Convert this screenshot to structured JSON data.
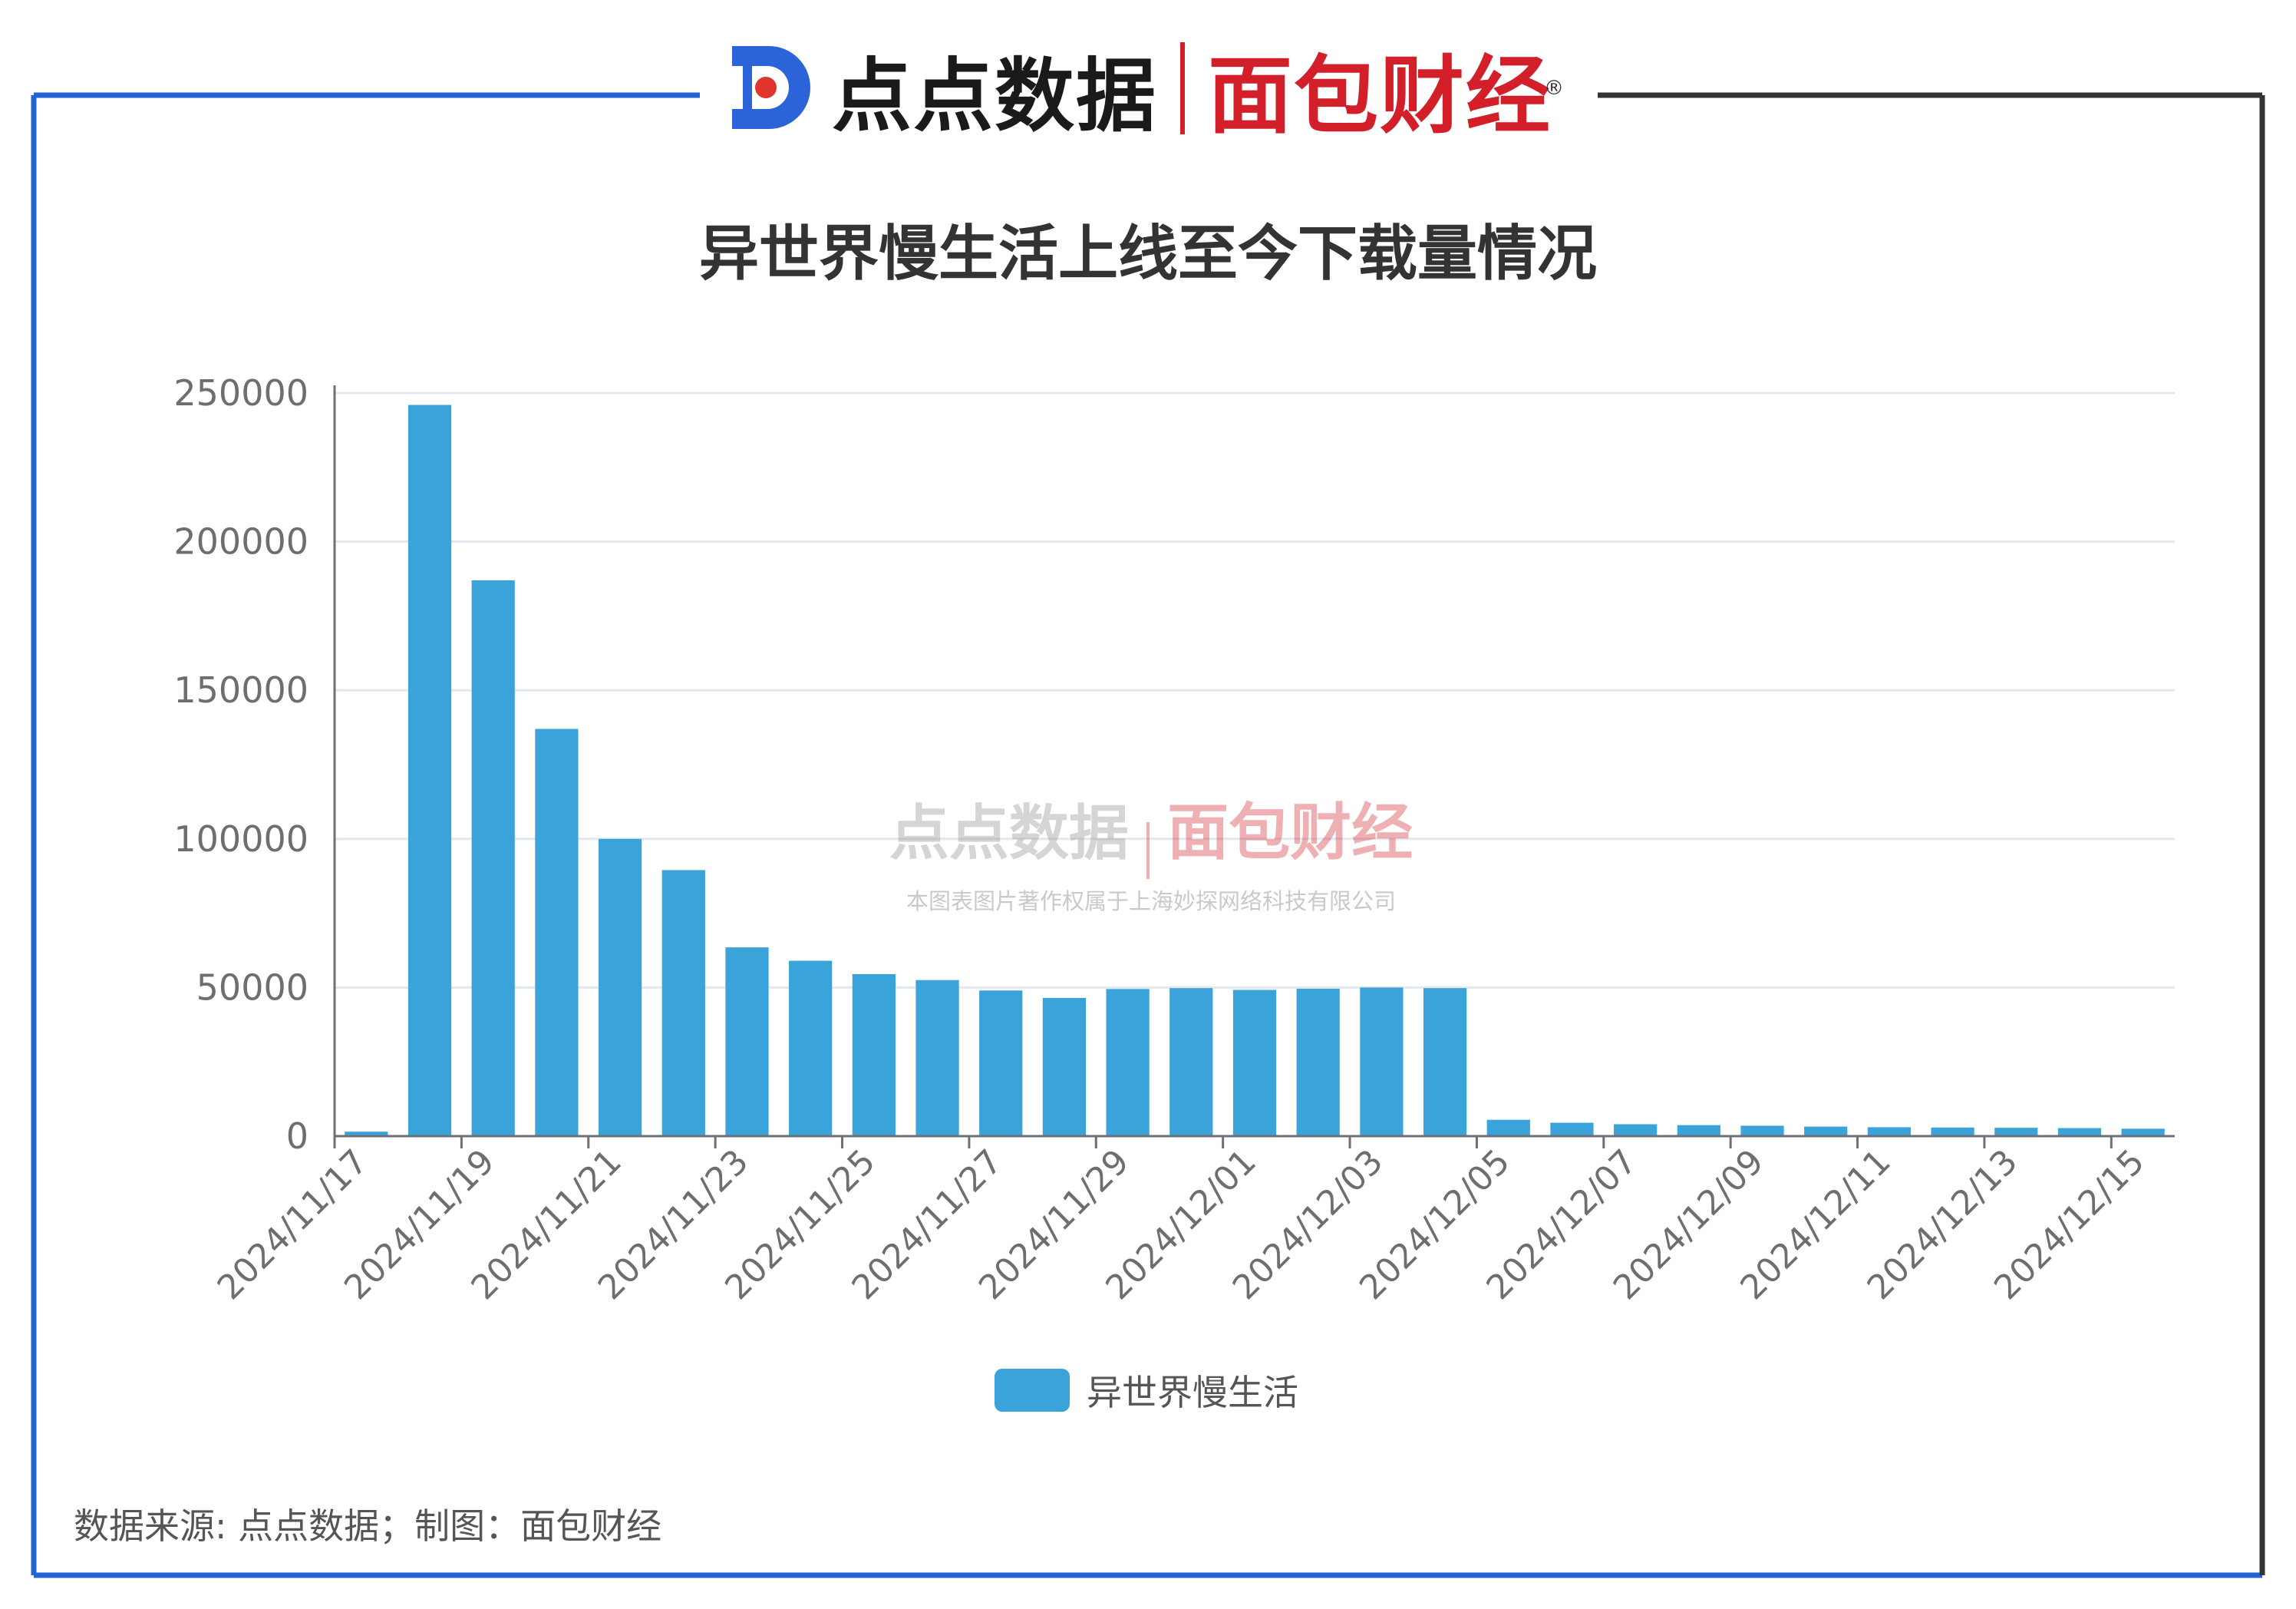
{
  "header": {
    "brand_name": "点点数据",
    "partner_name": "面包财经",
    "registered_mark": "®"
  },
  "watermark": {
    "brand_name": "点点数据",
    "partner_name": "面包财经",
    "notice": "本图表图片著作权属于上海妙探网络科技有限公司"
  },
  "footer": {
    "source_note": "数据来源: 点点数据；制图：面包财经"
  },
  "colors": {
    "bar": "#3aa3d9",
    "frame_blue": "#2463d6",
    "frame_dark": "#333333",
    "brand_blue": "#2b63d8",
    "brand_red": "#d21f2a"
  },
  "chart_data": {
    "type": "bar",
    "title": "异世界慢生活上线至今下载量情况",
    "xlabel": "",
    "ylabel": "",
    "ylim": [
      0,
      250000
    ],
    "yticks": [
      "0",
      "50000",
      "100000",
      "150000",
      "200000",
      "250000"
    ],
    "grid": true,
    "legend_position": "bottom-center",
    "categories": [
      "2024/11/17",
      "2024/11/18",
      "2024/11/19",
      "2024/11/20",
      "2024/11/21",
      "2024/11/22",
      "2024/11/23",
      "2024/11/24",
      "2024/11/25",
      "2024/11/26",
      "2024/11/27",
      "2024/11/28",
      "2024/11/29",
      "2024/11/30",
      "2024/12/01",
      "2024/12/02",
      "2024/12/03",
      "2024/12/04",
      "2024/12/05",
      "2024/12/06",
      "2024/12/07",
      "2024/12/08",
      "2024/12/09",
      "2024/12/10",
      "2024/12/11",
      "2024/12/12",
      "2024/12/13",
      "2024/12/14",
      "2024/12/15"
    ],
    "xtick_labels": [
      "2024/11/17",
      "",
      "2024/11/19",
      "",
      "2024/11/21",
      "",
      "2024/11/23",
      "",
      "2024/11/25",
      "",
      "2024/11/27",
      "",
      "2024/11/29",
      "",
      "2024/12/01",
      "",
      "2024/12/03",
      "",
      "2024/12/05",
      "",
      "2024/12/07",
      "",
      "2024/12/09",
      "",
      "2024/12/11",
      "",
      "2024/12/13",
      "",
      "2024/12/15"
    ],
    "series": [
      {
        "name": "异世界慢生活",
        "values": [
          1500,
          246000,
          187000,
          137000,
          100000,
          89500,
          63500,
          59000,
          54500,
          52500,
          49000,
          46500,
          49500,
          49800,
          49200,
          49600,
          50000,
          49800,
          5500,
          4500,
          4000,
          3700,
          3500,
          3200,
          3000,
          2900,
          2800,
          2700,
          2500
        ]
      }
    ]
  }
}
